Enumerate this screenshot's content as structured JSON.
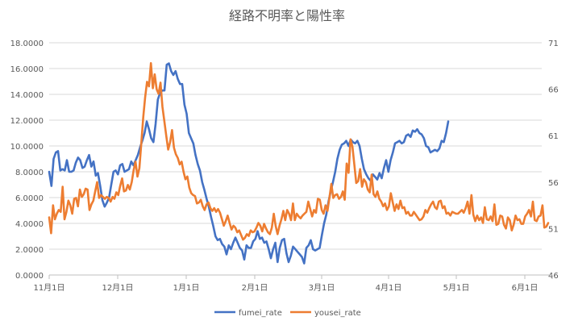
{
  "chart_data": {
    "type": "line",
    "title": "経路不明率と陽性率",
    "x_ticks": [
      "11月1日",
      "12月1日",
      "1月1日",
      "2月1日",
      "3月1日",
      "4月1日",
      "5月1日",
      "6月1日"
    ],
    "y_left": {
      "min": 0,
      "max": 18,
      "ticks": [
        "0.0000",
        "2.0000",
        "4.0000",
        "6.0000",
        "8.0000",
        "10.0000",
        "12.0000",
        "14.0000",
        "16.0000",
        "18.0000"
      ]
    },
    "y_right": {
      "min": 46,
      "max": 71,
      "ticks": [
        "46",
        "51",
        "56",
        "61",
        "66",
        "71"
      ]
    },
    "grid": "horizontal",
    "legend_position": "bottom",
    "series": [
      {
        "name": "fumei_rate",
        "axis": "left",
        "color": "#4472C4",
        "x_start": "2020-11-01",
        "values": [
          8.0,
          6.9,
          9.0,
          9.5,
          9.6,
          8.1,
          8.2,
          8.1,
          8.9,
          8.0,
          8.0,
          8.1,
          8.7,
          9.1,
          8.9,
          8.3,
          8.4,
          8.9,
          9.3,
          8.4,
          8.8,
          7.7,
          7.9,
          6.9,
          5.8,
          5.3,
          5.6,
          6.0,
          7.0,
          8.0,
          8.1,
          7.8,
          8.5,
          8.6,
          8.0,
          8.1,
          8.2,
          8.8,
          8.5,
          8.9,
          9.3,
          9.9,
          10.4,
          11.0,
          11.9,
          11.3,
          10.6,
          10.3,
          11.7,
          13.6,
          14.1,
          14.3,
          14.3,
          16.3,
          16.4,
          15.8,
          15.5,
          15.8,
          15.2,
          14.8,
          14.8,
          13.2,
          12.5,
          11.0,
          10.6,
          10.2,
          9.3,
          8.6,
          8.1,
          7.2,
          6.6,
          5.9,
          5.3,
          4.5,
          3.8,
          3.0,
          2.7,
          2.8,
          2.4,
          2.2,
          1.6,
          2.3,
          2.0,
          2.5,
          2.9,
          2.5,
          2.1,
          1.9,
          1.2,
          2.3,
          2.1,
          2.1,
          2.6,
          2.8,
          3.4,
          2.8,
          2.9,
          2.5,
          2.6,
          2.0,
          1.3,
          2.0,
          2.5,
          1.0,
          2.1,
          2.7,
          2.8,
          1.7,
          1.0,
          1.5,
          2.2,
          2.0,
          1.8,
          1.6,
          1.4,
          0.9,
          2.1,
          2.3,
          2.7,
          2.0,
          1.9,
          2.0,
          2.1,
          3.1,
          4.0,
          4.7,
          5.7,
          6.5,
          7.2,
          8.0,
          9.0,
          9.7,
          10.1,
          10.2,
          10.4,
          10.0,
          10.5,
          10.3,
          10.2,
          10.4,
          10.0,
          9.0,
          8.2,
          7.8,
          7.5,
          7.3,
          7.8,
          7.6,
          7.4,
          7.9,
          7.5,
          8.3,
          8.9,
          8.0,
          8.9,
          9.5,
          10.2,
          10.3,
          10.4,
          10.2,
          10.3,
          10.8,
          10.9,
          10.7,
          11.2,
          11.1,
          11.3,
          11.0,
          10.9,
          10.6,
          10.0,
          9.9,
          9.5,
          9.6,
          9.7,
          9.6,
          9.8,
          10.4,
          10.3,
          11.0,
          11.9
        ]
      },
      {
        "name": "yousei_rate",
        "axis": "right",
        "color": "#ED7D31",
        "x_start": "2020-11-01",
        "values": [
          52.2,
          50.5,
          53.5,
          52.0,
          52.6,
          53.0,
          52.8,
          55.5,
          52.0,
          52.8,
          54.0,
          53.5,
          52.6,
          54.2,
          54.3,
          53.4,
          55.2,
          54.4,
          54.7,
          55.3,
          55.2,
          53.0,
          53.6,
          54.0,
          55.0,
          56.0,
          54.3,
          54.6,
          54.4,
          54.2,
          54.4,
          54.3,
          53.9,
          54.4,
          54.2,
          54.9,
          54.6,
          55.6,
          56.4,
          55.0,
          55.1,
          55.7,
          55.2,
          56.0,
          57.3,
          58.2,
          56.6,
          57.5,
          60.2,
          63.0,
          65.1,
          66.8,
          66.3,
          68.8,
          66.1,
          67.6,
          66.0,
          65.5,
          66.7,
          64.1,
          62.6,
          61.0,
          59.5,
          60.3,
          61.6,
          59.7,
          59.0,
          58.6,
          57.9,
          58.2,
          57.1,
          56.3,
          56.6,
          55.4,
          54.8,
          54.6,
          54.5,
          53.7,
          53.8,
          54.1,
          53.4,
          53.0,
          53.6,
          53.8,
          53.2,
          52.9,
          53.2,
          52.8,
          53.1,
          52.7,
          52.0,
          51.3,
          51.8,
          52.4,
          51.6,
          50.9,
          51.3,
          51.1,
          50.6,
          50.8,
          50.3,
          49.8,
          50.0,
          50.4,
          50.2,
          50.8,
          50.6,
          50.7,
          51.1,
          51.6,
          51.3,
          50.7,
          51.5,
          51.0,
          50.6,
          50.4,
          51.1,
          52.6,
          51.3,
          50.4,
          51.3,
          52.0,
          52.9,
          51.9,
          53.0,
          52.6,
          51.9,
          53.7,
          51.9,
          52.6,
          52.3,
          52.1,
          52.4,
          52.6,
          52.8,
          53.9,
          53.1,
          52.3,
          53.0,
          52.7,
          54.2,
          54.1,
          53.0,
          52.6,
          53.5,
          52.9,
          54.3,
          55.8,
          54.3,
          54.6,
          54.7,
          54.2,
          54.4,
          55.0,
          54.1,
          58.0,
          57.0,
          60.6,
          59.8,
          57.9,
          55.9,
          56.1,
          57.4,
          55.5,
          56.3,
          56.0,
          55.2,
          54.9,
          56.8,
          54.7,
          54.4,
          55.0,
          54.2,
          53.9,
          53.4,
          53.7,
          53.0,
          53.4,
          54.8,
          53.8,
          52.9,
          53.6,
          53.1,
          54.0,
          53.2,
          53.3,
          52.6,
          52.8,
          52.4,
          52.4,
          52.8,
          52.5,
          52.2,
          51.9,
          52.0,
          52.3,
          53.0,
          52.7,
          53.2,
          53.6,
          53.9,
          53.3,
          53.1,
          53.9,
          54.0,
          53.2,
          53.4,
          52.6,
          52.7,
          52.4,
          52.8,
          52.7,
          52.6,
          52.6,
          52.8,
          53.0,
          52.7,
          53.2,
          53.9,
          52.6,
          54.6,
          52.5,
          51.8,
          52.4,
          51.9,
          52.2,
          51.6,
          53.3,
          52.0,
          51.9,
          52.3,
          51.8,
          53.6,
          51.4,
          51.5,
          52.4,
          52.3,
          51.4,
          51.0,
          52.2,
          51.9,
          50.8,
          51.4,
          52.4,
          51.9,
          52.0,
          51.5,
          51.5,
          52.3,
          52.6,
          53.0,
          52.3,
          53.9,
          51.9,
          51.8,
          52.3,
          52.4,
          53.5,
          51.1,
          51.2,
          51.6
        ]
      }
    ]
  }
}
